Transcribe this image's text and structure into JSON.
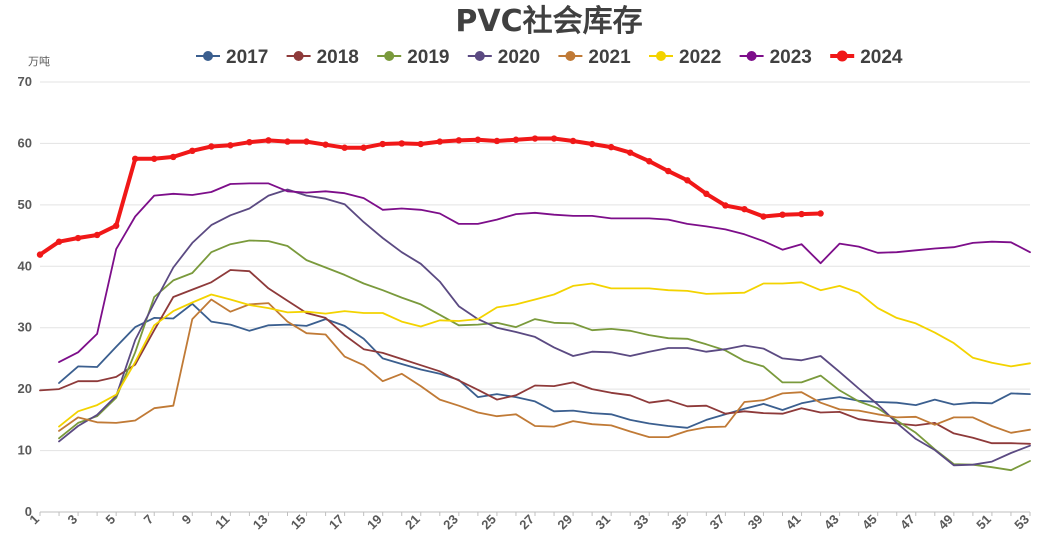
{
  "chart_data": {
    "type": "line",
    "title": "PVC社会库存",
    "ylabel": "万吨",
    "xlabel": "",
    "ylim": [
      0,
      70
    ],
    "yticks": [
      0,
      10,
      20,
      30,
      40,
      50,
      60,
      70
    ],
    "xlim": [
      1,
      53
    ],
    "xticks": [
      1,
      3,
      5,
      7,
      9,
      11,
      13,
      15,
      17,
      19,
      21,
      23,
      25,
      27,
      29,
      31,
      33,
      35,
      37,
      39,
      41,
      43,
      45,
      47,
      49,
      51,
      53
    ],
    "grid": true,
    "legend": "top",
    "series": [
      {
        "name": "2017",
        "color": "#3b5f8f",
        "values": [
          null,
          21.0,
          23.7,
          23.6,
          26.9,
          30.1,
          31.6,
          31.5,
          33.9,
          31.0,
          30.5,
          29.5,
          30.4,
          30.5,
          30.3,
          31.4,
          30.3,
          28.2,
          25.0,
          24.1,
          23.2,
          22.5,
          21.5,
          18.7,
          19.2,
          18.7,
          18.0,
          16.4,
          16.5,
          16.1,
          15.9,
          15.0,
          14.4,
          14.0,
          13.7,
          15.0,
          15.9,
          16.8,
          17.6,
          16.6,
          17.7,
          18.3,
          18.7,
          18.1,
          17.9,
          17.8,
          17.4,
          18.3,
          17.5,
          17.8,
          17.7,
          19.3,
          19.2
        ]
      },
      {
        "name": "2018",
        "color": "#8e3a3a",
        "values": [
          19.8,
          20.0,
          21.3,
          21.3,
          22.0,
          24.0,
          29.6,
          35.0,
          36.2,
          37.4,
          39.4,
          39.2,
          36.4,
          34.4,
          32.4,
          31.6,
          28.8,
          26.5,
          25.9,
          24.9,
          23.9,
          22.9,
          21.4,
          19.9,
          18.3,
          19.0,
          20.6,
          20.5,
          21.1,
          20.0,
          19.4,
          19.0,
          17.8,
          18.2,
          17.2,
          17.3,
          16.0,
          16.4,
          16.1,
          16.0,
          16.9,
          16.2,
          16.3,
          15.1,
          14.7,
          14.4,
          14.1,
          14.5,
          12.8,
          12.1,
          11.2,
          11.2,
          11.1
        ]
      },
      {
        "name": "2019",
        "color": "#7a9a3c",
        "values": [
          null,
          12.0,
          14.5,
          15.6,
          18.6,
          26.0,
          35.0,
          37.7,
          38.9,
          42.3,
          43.6,
          44.2,
          44.1,
          43.3,
          41.0,
          39.8,
          38.6,
          37.2,
          36.1,
          34.9,
          33.8,
          32.1,
          30.4,
          30.5,
          30.8,
          30.1,
          31.4,
          30.8,
          30.7,
          29.6,
          29.8,
          29.5,
          28.8,
          28.3,
          28.2,
          27.3,
          26.3,
          24.6,
          23.7,
          21.1,
          21.1,
          22.2,
          19.8,
          18.0,
          16.9,
          14.9,
          12.9,
          10.2,
          7.8,
          7.7,
          7.3,
          6.8,
          8.3
        ]
      },
      {
        "name": "2020",
        "color": "#5b4a82",
        "values": [
          null,
          11.5,
          14.0,
          15.8,
          18.9,
          28.0,
          34.0,
          39.8,
          43.8,
          46.7,
          48.3,
          49.4,
          51.5,
          52.5,
          51.5,
          51.0,
          50.1,
          47.2,
          44.6,
          42.3,
          40.4,
          37.5,
          33.5,
          31.4,
          30.0,
          29.3,
          28.5,
          26.8,
          25.4,
          26.1,
          26.0,
          25.4,
          26.1,
          26.7,
          26.7,
          26.1,
          26.5,
          27.1,
          26.6,
          25.0,
          24.7,
          25.4,
          22.8,
          20.1,
          17.5,
          14.5,
          11.9,
          10.1,
          7.6,
          7.7,
          8.2,
          9.6,
          10.8
        ]
      },
      {
        "name": "2021",
        "color": "#c07a36",
        "values": [
          null,
          13.2,
          15.4,
          14.6,
          14.5,
          14.9,
          16.9,
          17.3,
          31.4,
          34.6,
          32.6,
          33.8,
          34.0,
          31.0,
          29.1,
          28.9,
          25.3,
          23.9,
          21.3,
          22.5,
          20.5,
          18.3,
          17.3,
          16.2,
          15.6,
          15.9,
          14.0,
          13.9,
          14.8,
          14.3,
          14.1,
          13.1,
          12.2,
          12.2,
          13.2,
          13.8,
          13.9,
          17.9,
          18.2,
          19.3,
          19.5,
          17.8,
          16.7,
          16.5,
          15.9,
          15.4,
          15.5,
          14.2,
          15.4,
          15.4,
          14.0,
          12.9,
          13.4
        ]
      },
      {
        "name": "2022",
        "color": "#f3d300",
        "values": [
          null,
          13.9,
          16.4,
          17.4,
          19.1,
          24.4,
          30.4,
          32.7,
          34.1,
          35.4,
          34.6,
          33.7,
          33.2,
          32.5,
          32.6,
          32.3,
          32.7,
          32.4,
          32.4,
          31.0,
          30.2,
          31.2,
          31.1,
          31.4,
          33.3,
          33.8,
          34.6,
          35.4,
          36.8,
          37.2,
          36.4,
          36.4,
          36.4,
          36.1,
          36.0,
          35.5,
          35.6,
          35.7,
          37.2,
          37.2,
          37.4,
          36.1,
          36.8,
          35.7,
          33.2,
          31.6,
          30.7,
          29.2,
          27.5,
          25.1,
          24.3,
          23.7,
          24.2
        ]
      },
      {
        "name": "2023",
        "color": "#7d0e8a",
        "values": [
          null,
          24.4,
          26.0,
          29.0,
          42.8,
          48.1,
          51.5,
          51.8,
          51.6,
          52.1,
          53.4,
          53.5,
          53.5,
          52.2,
          52.0,
          52.2,
          51.9,
          51.1,
          49.2,
          49.4,
          49.2,
          48.6,
          46.9,
          46.9,
          47.6,
          48.5,
          48.7,
          48.4,
          48.2,
          48.2,
          47.8,
          47.8,
          47.8,
          47.6,
          46.9,
          46.5,
          46.0,
          45.2,
          44.1,
          42.7,
          43.6,
          40.5,
          43.7,
          43.2,
          42.2,
          42.3,
          42.6,
          42.9,
          43.1,
          43.8,
          44.0,
          43.9,
          42.3
        ]
      },
      {
        "name": "2024",
        "color": "#f01818",
        "values": [
          41.9,
          44.0,
          44.6,
          45.1,
          46.6,
          57.5,
          57.5,
          57.8,
          58.8,
          59.5,
          59.7,
          60.2,
          60.5,
          60.3,
          60.3,
          59.8,
          59.3,
          59.3,
          59.9,
          60.0,
          59.9,
          60.3,
          60.5,
          60.6,
          60.4,
          60.6,
          60.8,
          60.8,
          60.4,
          59.9,
          59.4,
          58.5,
          57.1,
          55.5,
          54.0,
          51.8,
          49.9,
          49.3,
          48.1,
          48.4,
          48.5,
          48.6
        ]
      }
    ]
  }
}
